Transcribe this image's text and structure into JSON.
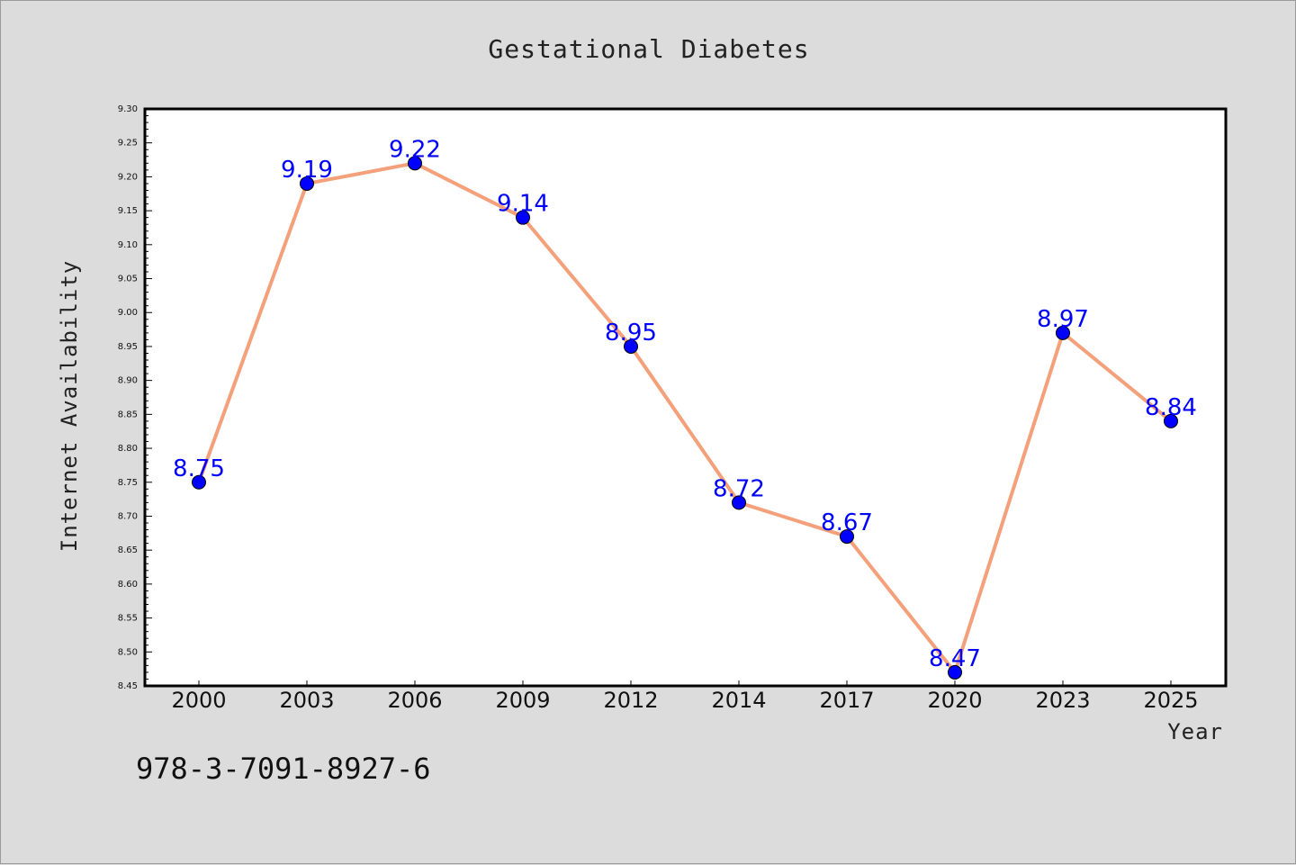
{
  "chart_data": {
    "type": "line",
    "title": "Gestational Diabetes",
    "xlabel": "Year",
    "ylabel": "Internet Availability",
    "categories": [
      "2000",
      "2003",
      "2006",
      "2009",
      "2012",
      "2014",
      "2017",
      "2020",
      "2023",
      "2025"
    ],
    "series": [
      {
        "values": [
          8.75,
          9.19,
          9.22,
          9.14,
          8.95,
          8.72,
          8.67,
          8.47,
          8.97,
          8.84
        ],
        "line_color": "#f4a07a",
        "marker_color": "#0000ff"
      }
    ],
    "data_labels": [
      "8.75",
      "9.19",
      "9.22",
      "9.14",
      "8.95",
      "8.72",
      "8.67",
      "8.47",
      "8.97",
      "8.84"
    ],
    "ylim": [
      8.45,
      9.3
    ],
    "yticks": [
      "8.45",
      "8.50",
      "8.55",
      "8.60",
      "8.65",
      "8.70",
      "8.75",
      "8.80",
      "8.85",
      "8.90",
      "8.95",
      "9.00",
      "9.05",
      "9.10",
      "9.15",
      "9.20",
      "9.25",
      "9.30"
    ],
    "grid": false,
    "legend": "none"
  },
  "footer": {
    "isbn": "978-3-7091-8927-6"
  },
  "colors": {
    "background": "#dcdcdc",
    "plot_background": "#ffffff",
    "line": "#f4a07a",
    "marker": "#0000ff",
    "label": "#0000ff"
  }
}
